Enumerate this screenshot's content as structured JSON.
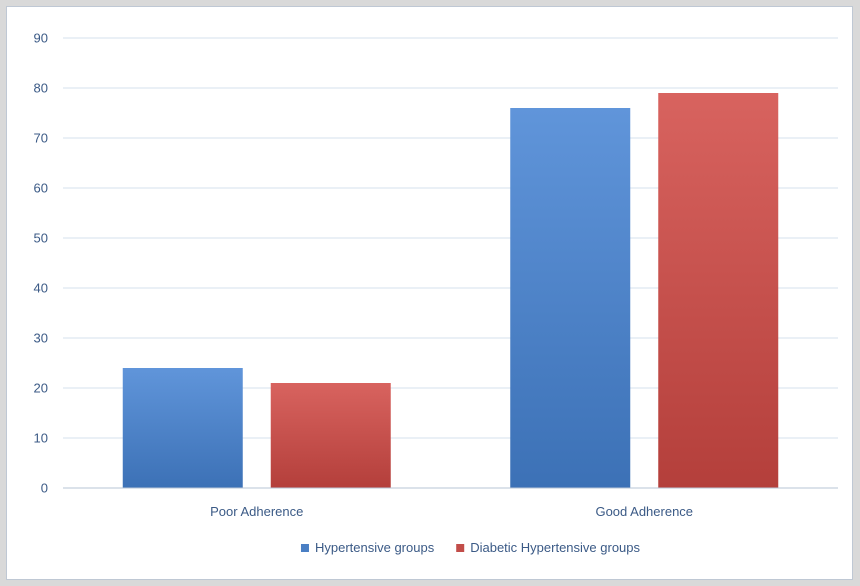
{
  "chart_data": {
    "type": "bar",
    "categories": [
      "Poor Adherence",
      "Good Adherence"
    ],
    "series": [
      {
        "name": "Hypertensive groups",
        "values": [
          24,
          76
        ],
        "color": "#4a7fc4"
      },
      {
        "name": "Diabetic Hypertensive groups",
        "values": [
          21,
          79
        ],
        "color": "#c24d49"
      }
    ],
    "title": "",
    "xlabel": "",
    "ylabel": "",
    "ylim": [
      0,
      90
    ],
    "yticks": [
      0,
      10,
      20,
      30,
      40,
      50,
      60,
      70,
      80,
      90
    ],
    "grid": true,
    "legend_position": "bottom",
    "colors": {
      "axis_text": "#3b5a86",
      "gridline": "#d6e0ee",
      "axis_line": "#b7c4d6"
    }
  }
}
